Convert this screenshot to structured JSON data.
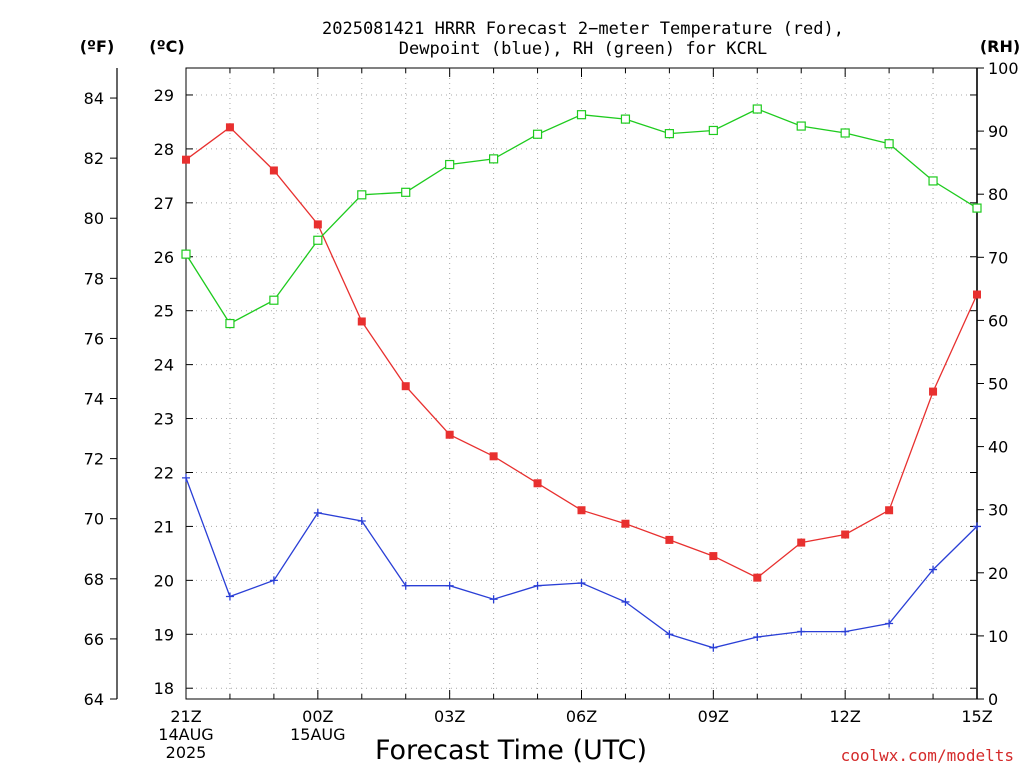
{
  "chart_data": {
    "type": "line",
    "title": "2025081421 HRRR Forecast 2-meter Temperature (red), Dewpoint (blue), RH (green) for KCRL",
    "title_lines": [
      "2025081421 HRRR Forecast 2−meter Temperature (red),",
      "Dewpoint (blue), RH (green) for KCRL"
    ],
    "xlabel": "Forecast Time (UTC)",
    "credit": "coolwx.com/modelts",
    "units": {
      "fahrenheit": "(ºF)",
      "celsius": "(ºC)",
      "rh": "(RH)"
    },
    "x": [
      "21Z",
      "22Z",
      "23Z",
      "00Z",
      "01Z",
      "02Z",
      "03Z",
      "04Z",
      "05Z",
      "06Z",
      "07Z",
      "08Z",
      "09Z",
      "10Z",
      "11Z",
      "12Z",
      "13Z",
      "14Z",
      "15Z"
    ],
    "x_tick_labels": [
      {
        "index": 0,
        "lines": [
          "21Z",
          "14AUG",
          "2025"
        ]
      },
      {
        "index": 3,
        "lines": [
          "00Z",
          "15AUG"
        ]
      },
      {
        "index": 6,
        "lines": [
          "03Z"
        ]
      },
      {
        "index": 9,
        "lines": [
          "06Z"
        ]
      },
      {
        "index": 12,
        "lines": [
          "09Z"
        ]
      },
      {
        "index": 15,
        "lines": [
          "12Z"
        ]
      },
      {
        "index": 18,
        "lines": [
          "15Z"
        ]
      }
    ],
    "y_celsius_range": [
      17.8,
      29.5
    ],
    "y_celsius_ticks": [
      18,
      19,
      20,
      21,
      22,
      23,
      24,
      25,
      26,
      27,
      28,
      29
    ],
    "y_fahrenheit_range": [
      64,
      85
    ],
    "y_fahrenheit_ticks": [
      64,
      66,
      68,
      70,
      72,
      74,
      76,
      78,
      80,
      82,
      84
    ],
    "y_rh_range": [
      0,
      100
    ],
    "y_rh_ticks": [
      0,
      10,
      20,
      30,
      40,
      50,
      60,
      70,
      80,
      90,
      100
    ],
    "grid": true,
    "series": [
      {
        "name": "Temperature",
        "axis": "celsius",
        "color": "#e8302f",
        "marker": "filled-square",
        "values": [
          27.8,
          28.4,
          27.6,
          26.6,
          24.8,
          23.6,
          22.7,
          22.3,
          21.8,
          21.3,
          21.05,
          20.75,
          20.45,
          20.05,
          20.7,
          20.85,
          21.3,
          23.5,
          25.3
        ]
      },
      {
        "name": "Dewpoint",
        "axis": "celsius",
        "color": "#2a3fd6",
        "marker": "plus",
        "values": [
          21.9,
          19.7,
          20.0,
          21.25,
          21.1,
          19.9,
          19.9,
          19.65,
          19.9,
          19.95,
          19.6,
          19.0,
          18.75,
          18.95,
          19.05,
          19.05,
          19.2,
          20.2,
          21.0
        ]
      },
      {
        "name": "RH",
        "axis": "rh",
        "color": "#1ecb1e",
        "marker": "open-square",
        "values": [
          70.5,
          59.5,
          63.2,
          72.7,
          79.9,
          80.3,
          84.7,
          85.6,
          89.5,
          92.6,
          91.9,
          89.6,
          90.1,
          93.5,
          90.8,
          89.7,
          88.0,
          82.1,
          77.8
        ]
      }
    ]
  }
}
